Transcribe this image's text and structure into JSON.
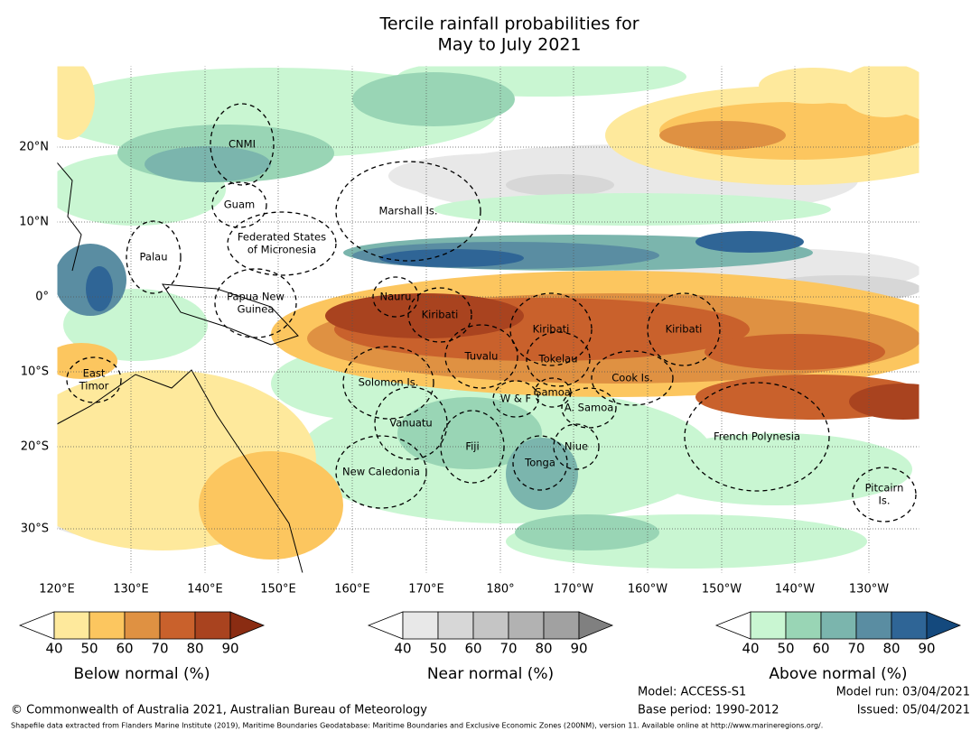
{
  "header": {
    "title": [
      "Tercile rainfall probabilities for",
      "May to July 2021"
    ]
  },
  "map": {
    "lon_labels": [
      "120°E",
      "130°E",
      "140°E",
      "150°E",
      "160°E",
      "170°E",
      "180°",
      "170°W",
      "160°W",
      "150°W",
      "140°W",
      "130°W"
    ],
    "lat_labels": [
      "20°N",
      "10°N",
      "0°",
      "10°S",
      "20°S",
      "30°S"
    ],
    "regions": [
      [
        "CNMI"
      ],
      [
        "Guam"
      ],
      [
        "Marshall Is."
      ],
      [
        "Federated States",
        "of Micronesia"
      ],
      [
        "Palau"
      ],
      [
        "Papua New",
        "Guinea"
      ],
      [
        "Nauru"
      ],
      [
        "Kiribati"
      ],
      [
        "Kiribati"
      ],
      [
        "Kiribati"
      ],
      [
        "Tuvalu"
      ],
      [
        "Tokelau"
      ],
      [
        "Cook Is."
      ],
      [
        "Solomon Is."
      ],
      [
        "W & F"
      ],
      [
        "Samoa"
      ],
      [
        "A. Samoa"
      ],
      [
        "Vanuatu"
      ],
      [
        "Fiji"
      ],
      [
        "Niue"
      ],
      [
        "Tonga"
      ],
      [
        "French Polynesia"
      ],
      [
        "New Caledonia"
      ],
      [
        "Pitcairn",
        "Is."
      ],
      [
        "East",
        "Timor"
      ]
    ]
  },
  "colorbars": [
    {
      "label": "Below normal (%)",
      "ticks": [
        40,
        50,
        60,
        70,
        80,
        90
      ],
      "colors": [
        "#fee99c",
        "#fcc65f",
        "#df9142",
        "#c9612c",
        "#a9431f",
        "#8a2c12"
      ]
    },
    {
      "label": "Near normal (%)",
      "ticks": [
        40,
        50,
        60,
        70,
        80,
        90
      ],
      "colors": [
        "#e8e8e8",
        "#d7d7d7",
        "#c5c5c5",
        "#b2b2b2",
        "#a1a1a1",
        "#808080"
      ]
    },
    {
      "label": "Above normal (%)",
      "ticks": [
        40,
        50,
        60,
        70,
        80,
        90
      ],
      "colors": [
        "#c9f6d2",
        "#99d5b5",
        "#7bb5ad",
        "#5a8da2",
        "#2f6596",
        "#14497d"
      ]
    }
  ],
  "footer": {
    "copyright": "© Commonwealth of Australia 2021, Australian Bureau of Meteorology",
    "model": "Model: ACCESS-S1",
    "model_run": "Model run: 03/04/2021",
    "base_period": "Base period: 1990-2012",
    "issued": "Issued: 05/04/2021",
    "source": "Shapefile data extracted from Flanders Marine Institute (2019), Maritime Boundaries Geodatabase: Maritime Boundaries and Exclusive Economic Zones (200NM), version 11. Available online at http://www.marineregions.org/."
  }
}
